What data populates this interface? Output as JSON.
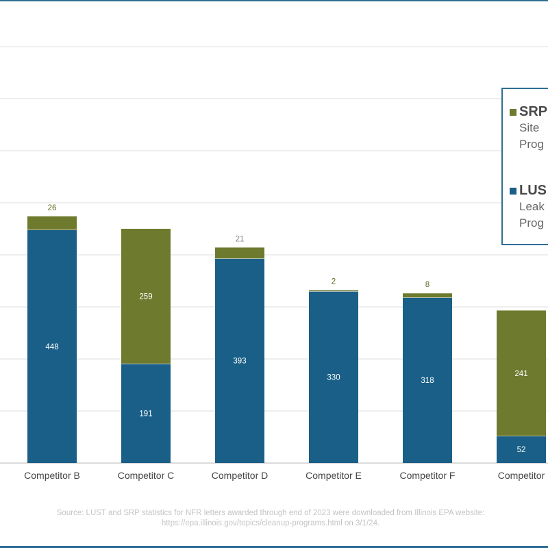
{
  "chart_data": {
    "type": "bar",
    "stacked": true,
    "categories": [
      "Competitor B",
      "Competitor C",
      "Competitor D",
      "Competitor E",
      "Competitor F",
      "Competitor"
    ],
    "series": [
      {
        "name": "LUST",
        "color": "#1a5f87",
        "values": [
          448,
          191,
          393,
          330,
          318,
          52
        ]
      },
      {
        "name": "SRP",
        "color": "#6e7a2e",
        "values": [
          26,
          259,
          21,
          2,
          8,
          241
        ]
      }
    ],
    "ylim": [
      0,
      800
    ],
    "y_gridlines": [
      100,
      200,
      300,
      400,
      500,
      600,
      700,
      800
    ],
    "grid": true,
    "legend_placement": "right",
    "legend": [
      {
        "title": "SRP",
        "desc": [
          "Site",
          "Prog"
        ],
        "color": "#6e7a2e"
      },
      {
        "title": "LUS",
        "desc": [
          "Leak",
          "Prog"
        ],
        "color": "#1a5f87"
      }
    ],
    "source": [
      "Source: LUST and SRP statistics for NFR letters awarded through end of 2023 were downloaded from Illinois EPA website:",
      "https://epa.illinois.gov/topics/cleanup-programs.html on 3/1/24."
    ]
  }
}
